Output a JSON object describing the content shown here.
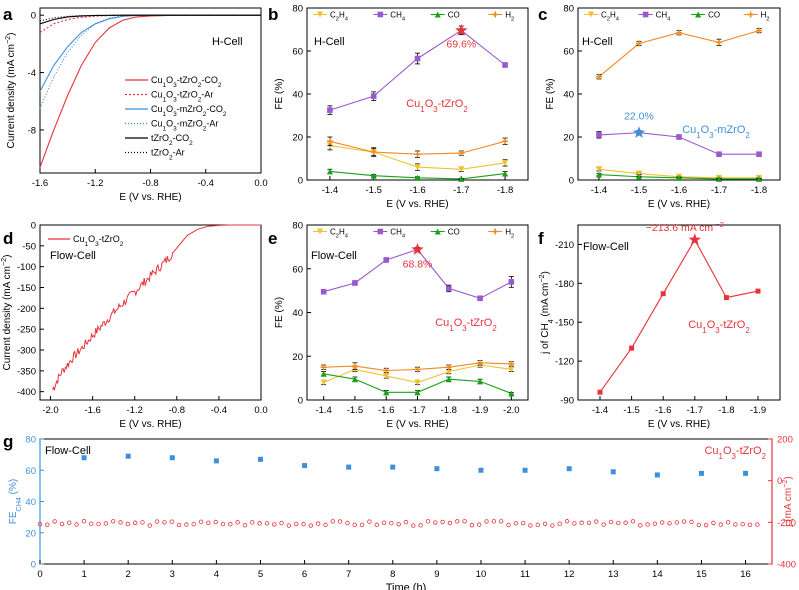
{
  "colors": {
    "c2h4": "#f2c12e",
    "ch4": "#9b59d0",
    "co": "#17a317",
    "h2": "#f08a24",
    "red": "#e8333a",
    "blue": "#3f8fdc",
    "axis": "#000000"
  },
  "panels": {
    "a": {
      "letter": "a",
      "ann1": "H-Cell"
    },
    "b": {
      "letter": "b",
      "ann1": "H-Cell",
      "ann2": "Cu",
      "ann2b": "O",
      "ann2c": "-tZrO",
      "star_label": "69.6%"
    },
    "c": {
      "letter": "c",
      "ann1": "H-Cell",
      "ann2": "Cu",
      "ann2b": "O",
      "ann2c": "-mZrO",
      "star_label": "22.0%"
    },
    "d": {
      "letter": "d",
      "ann1": "Flow-Cell"
    },
    "e": {
      "letter": "e",
      "ann1": "Flow-Cell",
      "ann2": "Cu",
      "ann2b": "O",
      "ann2c": "-tZrO",
      "star_label": "68.8%"
    },
    "f": {
      "letter": "f",
      "ann1": "Flow-Cell",
      "ann2": "Cu",
      "ann2b": "O",
      "ann2c": "-tZrO",
      "star_label": "−213.6 mA cm"
    },
    "g": {
      "letter": "g",
      "ann1": "Flow-Cell",
      "ann2": "Cu",
      "ann2b": "O",
      "ann2c": "-tZrO"
    }
  },
  "fe_legend": [
    {
      "key": "c2h4",
      "label": "C",
      "sub1": "2",
      "mid": "H",
      "sub2": "4"
    },
    {
      "key": "ch4",
      "label": "CH",
      "sub1": "",
      "mid": "",
      "sub2": "4"
    },
    {
      "key": "co",
      "label": "CO",
      "sub1": "",
      "mid": "",
      "sub2": ""
    },
    {
      "key": "h2",
      "label": "H",
      "sub1": "",
      "mid": "",
      "sub2": "2"
    }
  ],
  "chart_data": [
    {
      "id": "a",
      "type": "line",
      "xlabel": "E (V vs. RHE)",
      "ylabel": "Current density (mA cm⁻²)",
      "xlim": [
        -1.6,
        0.0
      ],
      "ylim": [
        -11,
        0.5
      ],
      "xticks": [
        "-1.6",
        "-1.2",
        "-0.8",
        "-0.4",
        "0.0"
      ],
      "yticks": [
        "0",
        "-4",
        "-8"
      ],
      "legend": [
        "Cu1O3-tZrO2-CO2",
        "Cu1O3-tZrO2-Ar",
        "Cu1O3-mZrO2-CO2",
        "Cu1O3-mZrO2-Ar",
        "tZrO2-CO2",
        "tZrO2-Ar"
      ],
      "series": [
        {
          "name": "Cu1O3-tZrO2-CO2",
          "style": "solid-red",
          "x": [
            -1.6,
            -1.5,
            -1.4,
            -1.3,
            -1.2,
            -1.1,
            -1.0,
            -0.9,
            -0.8,
            -0.6,
            -0.4,
            0.0
          ],
          "y": [
            -10.6,
            -8.0,
            -5.6,
            -3.5,
            -1.9,
            -0.9,
            -0.35,
            -0.12,
            -0.05,
            0,
            0,
            0
          ]
        },
        {
          "name": "Cu1O3-tZrO2-Ar",
          "style": "dash-red",
          "x": [
            -1.6,
            -1.5,
            -1.4,
            -1.3,
            -1.2,
            -1.1,
            -1.0,
            -0.9,
            -0.8,
            -0.6,
            0.0
          ],
          "y": [
            -1.2,
            -0.6,
            -0.3,
            -0.15,
            -0.07,
            -0.03,
            0,
            0,
            0,
            0,
            0
          ]
        },
        {
          "name": "Cu1O3-mZrO2-CO2",
          "style": "solid-blue",
          "x": [
            -1.6,
            -1.5,
            -1.4,
            -1.3,
            -1.2,
            -1.1,
            -1.0,
            -0.9,
            -0.8,
            -0.6,
            0.0
          ],
          "y": [
            -5.3,
            -3.5,
            -2.2,
            -1.2,
            -0.6,
            -0.25,
            -0.08,
            -0.02,
            0,
            0,
            0
          ]
        },
        {
          "name": "Cu1O3-mZrO2-Ar",
          "style": "dot-blue",
          "x": [
            -1.6,
            -1.5,
            -1.4,
            -1.3,
            -1.2,
            -1.1,
            -1.0,
            -0.9,
            0.0
          ],
          "y": [
            -6.5,
            -4.3,
            -2.6,
            -1.4,
            -0.6,
            -0.2,
            -0.05,
            0,
            0
          ]
        },
        {
          "name": "tZrO2-CO2",
          "style": "solid-black",
          "x": [
            -1.6,
            -1.5,
            -1.4,
            -1.3,
            -1.2,
            -1.0,
            0.0
          ],
          "y": [
            -0.6,
            -0.3,
            -0.12,
            -0.05,
            -0.02,
            0,
            0
          ]
        },
        {
          "name": "tZrO2-Ar",
          "style": "dot-black",
          "x": [
            -1.6,
            -1.5,
            -1.4,
            -1.3,
            -1.2,
            -1.0,
            0.0
          ],
          "y": [
            -0.4,
            -0.18,
            -0.08,
            -0.03,
            -0.01,
            0,
            0
          ]
        }
      ]
    },
    {
      "id": "b",
      "type": "line",
      "xlabel": "E (V vs. RHE)",
      "ylabel": "FE (%)",
      "categories": [
        "-1.4",
        "-1.5",
        "-1.6",
        "-1.7",
        "-1.8"
      ],
      "ylim": [
        0,
        80
      ],
      "yticks": [
        "0",
        "20",
        "40",
        "60",
        "80"
      ],
      "series": [
        {
          "name": "C2H4",
          "key": "c2h4",
          "values": [
            16,
            13,
            6,
            5,
            8
          ],
          "err": [
            2,
            1.5,
            1.5,
            1,
            1.5
          ]
        },
        {
          "name": "CH4",
          "key": "ch4",
          "values": [
            32.5,
            39,
            56.5,
            69.6,
            53.5
          ],
          "err": [
            2,
            2,
            2.5,
            2,
            1
          ]
        },
        {
          "name": "CO",
          "key": "co",
          "values": [
            4,
            2,
            1,
            0.5,
            3
          ],
          "err": [
            1,
            0.5,
            0.5,
            0.3,
            1
          ]
        },
        {
          "name": "H2",
          "key": "h2",
          "values": [
            18,
            13,
            12,
            12.5,
            18
          ],
          "err": [
            2,
            2,
            1.5,
            1,
            1.5
          ]
        }
      ],
      "star_index": 3,
      "star_series": "ch4"
    },
    {
      "id": "c",
      "type": "line",
      "xlabel": "E (V vs. RHE)",
      "ylabel": "FE (%)",
      "categories": [
        "-1.4",
        "-1.5",
        "-1.6",
        "-1.7",
        "-1.8"
      ],
      "ylim": [
        0,
        80
      ],
      "yticks": [
        "0",
        "20",
        "40",
        "60",
        "80"
      ],
      "series": [
        {
          "name": "C2H4",
          "key": "c2h4",
          "values": [
            5,
            3,
            1.5,
            1,
            1
          ],
          "err": [
            0.8,
            0.5,
            0.3,
            0.3,
            0.3
          ]
        },
        {
          "name": "CH4",
          "key": "ch4",
          "values": [
            21,
            22.0,
            20,
            12,
            12
          ],
          "err": [
            1.5,
            1,
            1,
            0.8,
            0.8
          ]
        },
        {
          "name": "CO",
          "key": "co",
          "values": [
            2.5,
            1.5,
            1,
            0.5,
            0.5
          ],
          "err": [
            0.5,
            0.3,
            0.3,
            0.2,
            0.2
          ]
        },
        {
          "name": "H2",
          "key": "h2",
          "values": [
            48,
            63.5,
            68.5,
            64,
            69.5
          ],
          "err": [
            1,
            1,
            1,
            1.5,
            1
          ]
        }
      ],
      "star_index": 1,
      "star_series": "ch4"
    },
    {
      "id": "d",
      "type": "line",
      "xlabel": "E (V vs. RHE)",
      "ylabel": "Current density (mA cm⁻²)",
      "xlim": [
        -2.1,
        0.0
      ],
      "ylim": [
        -420,
        0
      ],
      "xticks": [
        "-2.0",
        "-1.6",
        "-1.2",
        "-0.8",
        "-0.4",
        "0.0"
      ],
      "yticks": [
        "0",
        "-50",
        "-100",
        "-150",
        "-200",
        "-250",
        "-300",
        "-350",
        "-400"
      ],
      "legend": [
        "Cu1O3-tZrO2"
      ],
      "series": [
        {
          "name": "Cu1O3-tZrO2",
          "x": [
            -1.98,
            -1.9,
            -1.8,
            -1.7,
            -1.6,
            -1.5,
            -1.4,
            -1.3,
            -1.2,
            -1.1,
            -1.0,
            -0.9,
            -0.8,
            -0.7,
            -0.6,
            -0.5,
            -0.4,
            -0.3,
            0.0
          ],
          "y": [
            -395,
            -355,
            -322,
            -295,
            -265,
            -238,
            -210,
            -185,
            -160,
            -135,
            -110,
            -85,
            -55,
            -25,
            -10,
            -3,
            -1,
            0,
            0
          ]
        }
      ]
    },
    {
      "id": "e",
      "type": "line",
      "xlabel": "E (V vs. RHE)",
      "ylabel": "FE (%)",
      "categories": [
        "-1.4",
        "-1.5",
        "-1.6",
        "-1.7",
        "-1.8",
        "-1.9",
        "-2.0"
      ],
      "ylim": [
        0,
        80
      ],
      "yticks": [
        "0",
        "20",
        "40",
        "60",
        "80"
      ],
      "series": [
        {
          "name": "C2H4",
          "key": "c2h4",
          "values": [
            8,
            14,
            11,
            8,
            13,
            16,
            14
          ],
          "err": [
            1,
            1,
            1,
            1,
            1,
            1,
            1
          ]
        },
        {
          "name": "CH4",
          "key": "ch4",
          "values": [
            49.5,
            53.5,
            64,
            68.8,
            51,
            46.5,
            54
          ],
          "err": [
            1,
            1,
            1,
            1,
            1.5,
            1,
            2.5
          ]
        },
        {
          "name": "CO",
          "key": "co",
          "values": [
            12,
            9.5,
            3.5,
            3.5,
            9.5,
            8.5,
            3
          ],
          "err": [
            1,
            1,
            0.8,
            0.8,
            1,
            1,
            0.5
          ]
        },
        {
          "name": "H2",
          "key": "h2",
          "values": [
            15,
            15.5,
            13.5,
            14,
            15,
            17,
            16.5
          ],
          "err": [
            1,
            1.5,
            1,
            1,
            1,
            1,
            1
          ]
        }
      ],
      "star_index": 3,
      "star_series": "ch4"
    },
    {
      "id": "f",
      "type": "line",
      "xlabel": "E (V vs. RHE)",
      "ylabel": "j of CH4 (mA cm⁻²)",
      "categories": [
        "-1.4",
        "-1.5",
        "-1.6",
        "-1.7",
        "-1.8",
        "-1.9"
      ],
      "ylim": [
        -90,
        -225
      ],
      "yticks": [
        "-90",
        "-120",
        "-150",
        "-180",
        "-210"
      ],
      "series": [
        {
          "name": "Cu1O3-tZrO2",
          "values": [
            -96,
            -130,
            -172,
            -213.6,
            -169,
            -174
          ]
        }
      ],
      "star_index": 3
    },
    {
      "id": "g",
      "type": "scatter",
      "xlabel": "Time (h)",
      "ylabel": "FE_CH4 (%)",
      "ylabel_right": "j (mA cm⁻²)",
      "xlim": [
        0,
        16.6
      ],
      "ylim": [
        0,
        80
      ],
      "ylim_right": [
        -400,
        200
      ],
      "xticks": [
        "0",
        "1",
        "2",
        "3",
        "4",
        "5",
        "6",
        "7",
        "8",
        "9",
        "10",
        "11",
        "12",
        "13",
        "14",
        "15",
        "16"
      ],
      "yticks": [
        "0",
        "20",
        "40",
        "60",
        "80"
      ],
      "yticks_right": [
        "200",
        "0",
        "-200",
        "-400"
      ],
      "fe": {
        "x": [
          1,
          2,
          3,
          4,
          5,
          6,
          7,
          8,
          9,
          10,
          11,
          12,
          13,
          14,
          15,
          16
        ],
        "y": [
          68,
          69,
          68,
          66,
          67,
          63,
          62,
          62,
          61,
          60,
          60,
          61,
          59,
          57,
          58,
          58
        ]
      },
      "j": {
        "start": 0,
        "end": 16.3,
        "step": 0.166,
        "base": -205,
        "amp": 22
      }
    }
  ]
}
